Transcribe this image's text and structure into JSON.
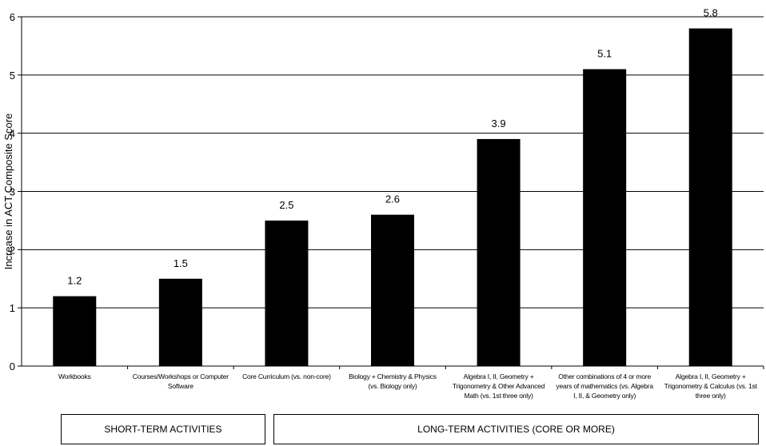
{
  "chart_data": {
    "type": "bar",
    "ylabel": "Increase in ACT Composite Score",
    "ylim": [
      0,
      6
    ],
    "yticks": [
      "0",
      "1",
      "2",
      "3",
      "4",
      "5",
      "6"
    ],
    "grid": true,
    "bar_color": "#000000",
    "categories": [
      "Workbooks",
      "Courses/Workshops or Computer Software",
      "Core Curriculum (vs. non-core)",
      "Biology + Chemistry & Physics (vs. Biology only)",
      "Algebra I, II, Geometry + Trigonometry & Other Advanced Math (vs. 1st three only)",
      "Other combinations of 4 or more years of mathematics (vs. Algebra I, II, & Geometry only)",
      "Algebra I, II, Geometry + Trigonometry & Calculus (vs. 1st three only)"
    ],
    "values": [
      1.2,
      1.5,
      2.5,
      2.6,
      3.9,
      5.1,
      5.8
    ],
    "value_labels": [
      "1.2",
      "1.5",
      "2.5",
      "2.6",
      "3.9",
      "5.1",
      "5.8"
    ]
  },
  "groups": {
    "short_term": "SHORT-TERM ACTIVITIES",
    "long_term": "LONG-TERM ACTIVITIES (CORE OR MORE)"
  }
}
